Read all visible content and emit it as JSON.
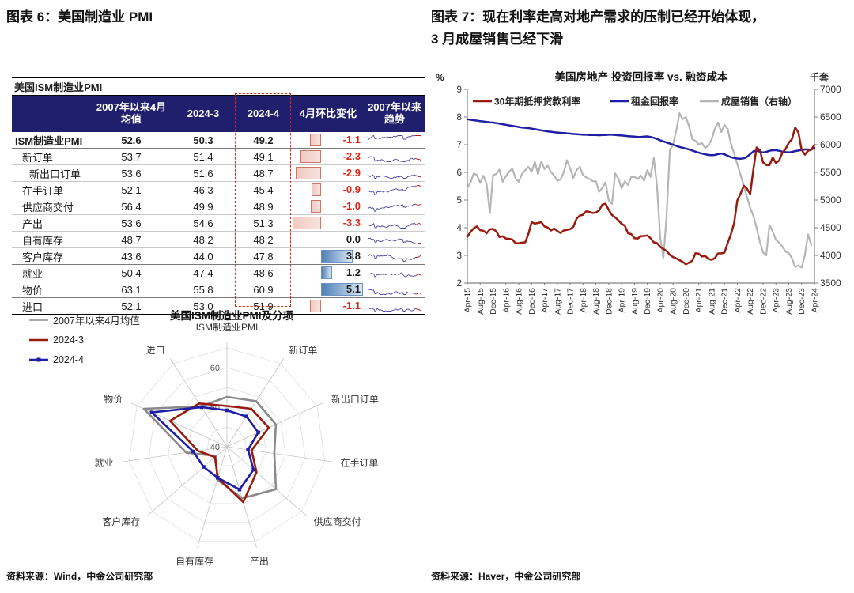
{
  "page": {
    "fig6_title": "图表 6：美国制造业 PMI",
    "fig7_title_line1": "图表 7：现在利率走高对地产需求的压制已经开始体现，",
    "fig7_title_line2": "3 月成屋销售已经下滑",
    "fig6_source": "资料来源：Wind，中金公司研究部",
    "fig7_source": "资料来源：Haver，中金公司研究部"
  },
  "colors": {
    "header_navy": "#201f6e",
    "mortgage_red": "#9a1b0e",
    "rental_blue": "#1f1fa6",
    "sales_gray": "#b5b5b5",
    "avg_gray": "#8a8a8a",
    "negative_red": "#e02413",
    "spark_navy": "#4646a0",
    "spark_red": "#c41a0e"
  },
  "chart_data": [
    {
      "id": "ism-pmi-table",
      "type": "table",
      "title": "美国ISM制造业PMI",
      "columns": [
        "",
        "2007年以来4月均值",
        "2024-3",
        "2024-4",
        "4月环比变化",
        "2007年以来趋势"
      ],
      "rows": [
        {
          "label": "ISM制造业PMI",
          "indent": 0,
          "bold": true,
          "avg": 52.6,
          "v2024_3": 50.3,
          "v2024_4": 49.2,
          "mom_change": -1.1
        },
        {
          "label": "新订单",
          "indent": 1,
          "bold": false,
          "avg": 53.7,
          "v2024_3": 51.4,
          "v2024_4": 49.1,
          "mom_change": -2.3
        },
        {
          "label": "新出口订单",
          "indent": 2,
          "bold": false,
          "avg": 53.6,
          "v2024_3": 51.6,
          "v2024_4": 48.7,
          "mom_change": -2.9
        },
        {
          "label": "在手订单",
          "indent": 1,
          "bold": false,
          "avg": 52.1,
          "v2024_3": 46.3,
          "v2024_4": 45.4,
          "mom_change": -0.9
        },
        {
          "label": "供应商交付",
          "indent": 1,
          "bold": false,
          "avg": 56.4,
          "v2024_3": 49.9,
          "v2024_4": 48.9,
          "mom_change": -1.0
        },
        {
          "label": "产出",
          "indent": 1,
          "bold": false,
          "avg": 53.6,
          "v2024_3": 54.6,
          "v2024_4": 51.3,
          "mom_change": -3.3
        },
        {
          "label": "自有库存",
          "indent": 1,
          "bold": false,
          "avg": 48.7,
          "v2024_3": 48.2,
          "v2024_4": 48.2,
          "mom_change": 0.0
        },
        {
          "label": "客户库存",
          "indent": 1,
          "bold": false,
          "avg": 43.6,
          "v2024_3": 44.0,
          "v2024_4": 47.8,
          "mom_change": 3.8
        },
        {
          "label": "就业",
          "indent": 1,
          "bold": false,
          "avg": 50.4,
          "v2024_3": 47.4,
          "v2024_4": 48.6,
          "mom_change": 1.2
        },
        {
          "label": "物价",
          "indent": 1,
          "bold": false,
          "avg": 63.1,
          "v2024_3": 55.8,
          "v2024_4": 60.9,
          "mom_change": 5.1
        },
        {
          "label": "进口",
          "indent": 1,
          "bold": false,
          "avg": 52.1,
          "v2024_3": 53.0,
          "v2024_4": 51.9,
          "mom_change": -1.1
        }
      ],
      "dark_separators_after_rows": [
        0,
        3,
        7,
        8,
        9
      ]
    },
    {
      "id": "ism-pmi-radar",
      "type": "radar",
      "title": "美国ISM制造业PMI及分项",
      "axes": [
        "ISM制造业PMI",
        "新订单",
        "新出口订单",
        "在手订单",
        "供应商交付",
        "产出",
        "自有库存",
        "客户库存",
        "就业",
        "物价",
        "进口"
      ],
      "radial_ticks": [
        40,
        50,
        60
      ],
      "scale": {
        "center_value": 40,
        "max_value": 65,
        "ring_step": 5
      },
      "series": [
        {
          "name": "2007年以来4月均值",
          "color": "#8a8a8a",
          "marker": "none",
          "values": [
            52.6,
            53.7,
            53.6,
            52.1,
            56.4,
            53.6,
            48.7,
            43.6,
            50.4,
            63.1,
            52.1
          ]
        },
        {
          "name": "2024-3",
          "color": "#9a1b0e",
          "marker": "none",
          "values": [
            50.3,
            51.4,
            51.6,
            46.3,
            49.9,
            54.6,
            48.2,
            44.0,
            47.4,
            55.8,
            53.0
          ]
        },
        {
          "name": "2024-4",
          "color": "#1f1fa6",
          "marker": "square",
          "values": [
            49.2,
            49.1,
            48.7,
            45.4,
            48.9,
            51.3,
            48.2,
            47.8,
            48.6,
            60.9,
            51.9
          ]
        }
      ]
    },
    {
      "id": "us-housing-return-vs-financing",
      "type": "line",
      "title": "美国房地产 投资回报率 vs. 融资成本",
      "left_axis": {
        "unit": "%",
        "min": 2,
        "max": 9,
        "ticks": [
          9,
          8,
          7,
          6,
          5,
          4,
          3,
          2
        ]
      },
      "right_axis": {
        "unit": "千套",
        "min": 3500,
        "max": 7000,
        "ticks": [
          7000,
          6500,
          6000,
          5500,
          5000,
          4500,
          4000,
          3500
        ]
      },
      "x_start": "Apr-15",
      "x_tick_labels": [
        "Apr-15",
        "Aug-15",
        "Dec-15",
        "Apr-16",
        "Aug-16",
        "Dec-16",
        "Apr-17",
        "Aug-17",
        "Dec-17",
        "Apr-18",
        "Aug-18",
        "Dec-18",
        "Apr-19",
        "Aug-19",
        "Dec-19",
        "Apr-20",
        "Aug-20",
        "Dec-20",
        "Apr-21",
        "Aug-21",
        "Dec-21",
        "Apr-22",
        "Aug-22",
        "Dec-22",
        "Apr-23",
        "Aug-23",
        "Dec-23",
        "Apr-24"
      ],
      "months_per_tick": 4,
      "legend_position": "top",
      "series": [
        {
          "name": "30年期抵押贷款利率",
          "axis": "left",
          "color": "#9a1b0e",
          "values": [
            3.67,
            3.85,
            3.98,
            4.05,
            3.91,
            3.89,
            3.8,
            3.94,
            3.96,
            3.87,
            3.66,
            3.69,
            3.61,
            3.6,
            3.57,
            3.44,
            3.44,
            3.46,
            3.47,
            3.77,
            4.2,
            4.15,
            4.17,
            4.2,
            4.05,
            4.01,
            3.9,
            3.97,
            3.88,
            3.81,
            3.9,
            3.92,
            3.95,
            4.03,
            4.33,
            4.44,
            4.47,
            4.59,
            4.57,
            4.53,
            4.55,
            4.63,
            4.83,
            4.87,
            4.64,
            4.46,
            4.37,
            4.27,
            4.14,
            4.07,
            3.8,
            3.77,
            3.62,
            3.61,
            3.69,
            3.7,
            3.72,
            3.62,
            3.47,
            3.45,
            3.31,
            3.23,
            3.16,
            3.02,
            2.94,
            2.89,
            2.83,
            2.77,
            2.68,
            2.74,
            2.81,
            3.08,
            3.06,
            2.96,
            2.98,
            2.87,
            2.84,
            2.9,
            3.07,
            3.07,
            3.1,
            3.45,
            3.76,
            4.17,
            4.98,
            5.23,
            5.52,
            5.41,
            5.22,
            6.11,
            6.9,
            6.81,
            6.36,
            6.27,
            6.26,
            6.54,
            6.34,
            6.43,
            6.71,
            6.84,
            7.07,
            7.2,
            7.62,
            7.44,
            6.82,
            6.64,
            6.78,
            6.82,
            6.99
          ]
        },
        {
          "name": "租金回报率",
          "axis": "left",
          "color": "#1f1fa6",
          "values": [
            7.92,
            7.9,
            7.88,
            7.87,
            7.85,
            7.84,
            7.82,
            7.81,
            7.8,
            7.78,
            7.76,
            7.74,
            7.72,
            7.7,
            7.68,
            7.66,
            7.64,
            7.62,
            7.61,
            7.6,
            7.58,
            7.56,
            7.54,
            7.52,
            7.5,
            7.48,
            7.47,
            7.45,
            7.44,
            7.43,
            7.42,
            7.41,
            7.4,
            7.39,
            7.38,
            7.37,
            7.36,
            7.36,
            7.35,
            7.35,
            7.35,
            7.34,
            7.35,
            7.35,
            7.36,
            7.36,
            7.35,
            7.34,
            7.33,
            7.32,
            7.31,
            7.3,
            7.29,
            7.28,
            7.28,
            7.29,
            7.3,
            7.28,
            7.25,
            7.21,
            7.16,
            7.12,
            7.08,
            7.04,
            7.0,
            6.96,
            6.92,
            6.89,
            6.86,
            6.83,
            6.79,
            6.75,
            6.71,
            6.68,
            6.65,
            6.63,
            6.62,
            6.63,
            6.66,
            6.68,
            6.65,
            6.6,
            6.55,
            6.52,
            6.5,
            6.49,
            6.51,
            6.56,
            6.66,
            6.76,
            6.79,
            6.75,
            6.72,
            6.74,
            6.78,
            6.8,
            6.8,
            6.78,
            6.75,
            6.73,
            6.72,
            6.74,
            6.77,
            6.79,
            6.81,
            6.83,
            6.83,
            6.82,
            6.88
          ]
        },
        {
          "name": "成屋销售（右轴）",
          "axis": "right",
          "color": "#b5b5b5",
          "values": [
            5220,
            5320,
            5480,
            5450,
            5310,
            5440,
            5290,
            4760,
            5450,
            5470,
            5550,
            5330,
            5430,
            5510,
            5570,
            5390,
            5330,
            5470,
            5540,
            5600,
            5510,
            5690,
            5470,
            5700,
            5560,
            5620,
            5510,
            5440,
            5350,
            5370,
            5500,
            5720,
            5570,
            5400,
            5540,
            5600,
            5450,
            5410,
            5380,
            5340,
            5340,
            5150,
            5220,
            5320,
            4990,
            4930,
            5480,
            5390,
            5210,
            5340,
            5270,
            5420,
            5420,
            5380,
            5440,
            5350,
            5540,
            5420,
            5760,
            5270,
            4330,
            3950,
            4720,
            5900,
            6000,
            6250,
            6570,
            6460,
            6500,
            6330,
            6100,
            6070,
            6000,
            6030,
            5940,
            5990,
            6090,
            6290,
            6400,
            6230,
            6360,
            6280,
            6020,
            5840,
            5650,
            5460,
            5260,
            5060,
            4860,
            4710,
            4500,
            4250,
            4050,
            4000,
            4550,
            4430,
            4280,
            4230,
            4160,
            4070,
            4040,
            3950,
            3790,
            3820,
            3780,
            4000,
            4380,
            4190
          ]
        }
      ]
    }
  ]
}
